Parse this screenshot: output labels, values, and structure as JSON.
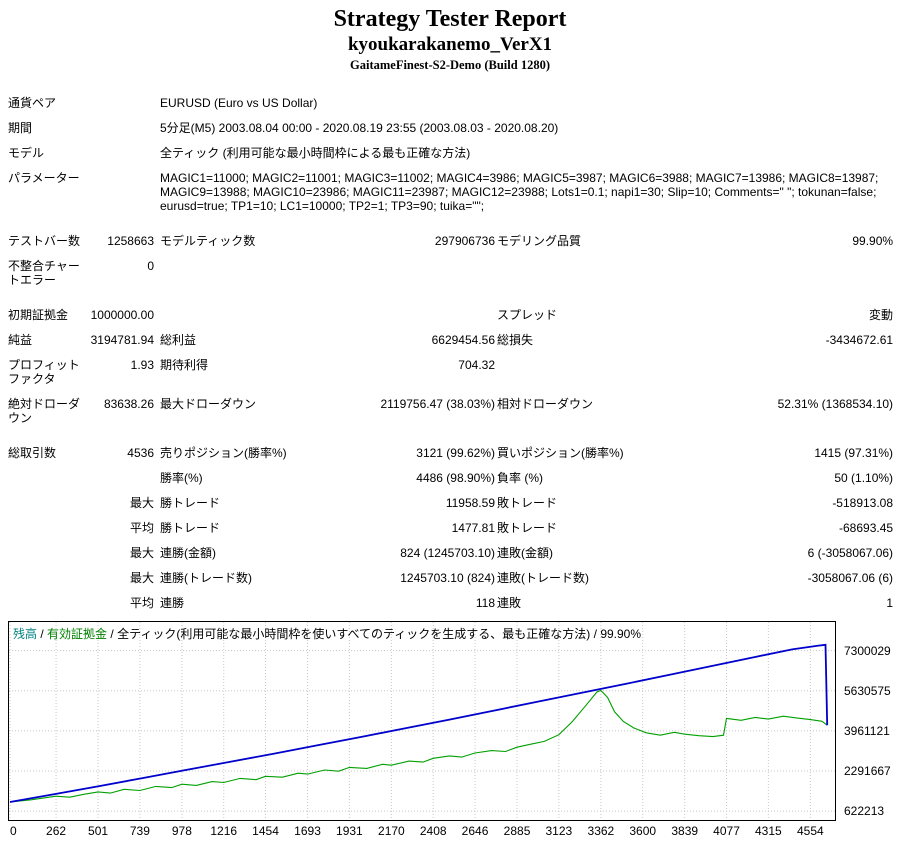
{
  "header": {
    "title": "Strategy Tester Report",
    "expert_name": "kyoukarakanemo_VerX1",
    "server": "GaitameFinest-S2-Demo (Build 1280)"
  },
  "table": {
    "rows": [
      {
        "cells": [
          {
            "t": "通貨ペア",
            "cls": "lbl"
          },
          {
            "t": "",
            "cls": "num"
          },
          {
            "t": "EURUSD (Euro vs US Dollar)",
            "cls": "txt",
            "span": 4
          }
        ]
      },
      {
        "cells": [
          {
            "t": "期間",
            "cls": "lbl"
          },
          {
            "t": "",
            "cls": "num"
          },
          {
            "t": "5分足(M5) 2003.08.04 00:00 - 2020.08.19 23:55 (2003.08.03 - 2020.08.20)",
            "cls": "txt",
            "span": 4
          }
        ]
      },
      {
        "cells": [
          {
            "t": "モデル",
            "cls": "lbl"
          },
          {
            "t": "",
            "cls": "num"
          },
          {
            "t": "全ティック (利用可能な最小時間枠による最も正確な方法)",
            "cls": "txt",
            "span": 4
          }
        ]
      },
      {
        "cells": [
          {
            "t": "パラメーター",
            "cls": "lbl"
          },
          {
            "t": "",
            "cls": "num"
          },
          {
            "t": "MAGIC1=11000; MAGIC2=11001; MAGIC3=11002; MAGIC4=3986; MAGIC5=3987; MAGIC6=3988; MAGIC7=13986; MAGIC8=13987; MAGIC9=13988; MAGIC10=23986; MAGIC11=23987; MAGIC12=23988; Lots1=0.1; napi1=30; Slip=10; Comments=\" \"; tokunan=false; eurusd=true; TP1=10; LC1=10000; TP2=1; TP3=90; tuika=\"\";",
            "cls": "txt",
            "span": 4
          }
        ]
      },
      {
        "spacer": true
      },
      {
        "cells": [
          {
            "t": "テストバー数",
            "cls": "lbl"
          },
          {
            "t": "1258663",
            "cls": "num"
          },
          {
            "t": "モデルティック数",
            "cls": "lbl3"
          },
          {
            "t": "297906736",
            "cls": "num"
          },
          {
            "t": "モデリング品質",
            "cls": "lbl5"
          },
          {
            "t": "99.90%",
            "cls": "num"
          }
        ]
      },
      {
        "cells": [
          {
            "t": "不整合チャートエラー",
            "cls": "lbl"
          },
          {
            "t": "0",
            "cls": "num"
          },
          {
            "t": "",
            "cls": "txt",
            "span": 4
          }
        ]
      },
      {
        "spacer": true
      },
      {
        "cells": [
          {
            "t": "初期証拠金",
            "cls": "lbl"
          },
          {
            "t": "1000000.00",
            "cls": "num"
          },
          {
            "t": "",
            "cls": "lbl3"
          },
          {
            "t": "",
            "cls": "num"
          },
          {
            "t": "スプレッド",
            "cls": "lbl5"
          },
          {
            "t": "変動",
            "cls": "num"
          }
        ]
      },
      {
        "cells": [
          {
            "t": "純益",
            "cls": "lbl"
          },
          {
            "t": "3194781.94",
            "cls": "num"
          },
          {
            "t": "総利益",
            "cls": "lbl3"
          },
          {
            "t": "6629454.56",
            "cls": "num"
          },
          {
            "t": "総損失",
            "cls": "lbl5"
          },
          {
            "t": "-3434672.61",
            "cls": "num"
          }
        ]
      },
      {
        "cells": [
          {
            "t": "プロフィットファクタ",
            "cls": "lbl"
          },
          {
            "t": "1.93",
            "cls": "num"
          },
          {
            "t": "期待利得",
            "cls": "lbl3"
          },
          {
            "t": "704.32",
            "cls": "num"
          },
          {
            "t": "",
            "cls": "lbl5"
          },
          {
            "t": "",
            "cls": "num"
          }
        ]
      },
      {
        "cells": [
          {
            "t": "絶対ドローダウン",
            "cls": "lbl"
          },
          {
            "t": "83638.26",
            "cls": "num"
          },
          {
            "t": "最大ドローダウン",
            "cls": "lbl3"
          },
          {
            "t": "2119756.47 (38.03%)",
            "cls": "num"
          },
          {
            "t": "相対ドローダウン",
            "cls": "lbl5"
          },
          {
            "t": "52.31% (1368534.10)",
            "cls": "num"
          }
        ]
      },
      {
        "spacer": true
      },
      {
        "cells": [
          {
            "t": "総取引数",
            "cls": "lbl"
          },
          {
            "t": "4536",
            "cls": "num"
          },
          {
            "t": "売りポジション(勝率%)",
            "cls": "lbl3"
          },
          {
            "t": "3121 (99.62%)",
            "cls": "num"
          },
          {
            "t": "買いポジション(勝率%)",
            "cls": "lbl5"
          },
          {
            "t": "1415 (97.31%)",
            "cls": "num"
          }
        ]
      },
      {
        "cells": [
          {
            "t": "",
            "cls": "lbl"
          },
          {
            "t": "",
            "cls": "num"
          },
          {
            "t": "勝率(%)",
            "cls": "lbl3"
          },
          {
            "t": "4486 (98.90%)",
            "cls": "num"
          },
          {
            "t": "負率 (%)",
            "cls": "lbl5"
          },
          {
            "t": "50 (1.10%)",
            "cls": "num"
          }
        ]
      },
      {
        "cells": [
          {
            "t": "",
            "cls": "lbl"
          },
          {
            "t": "最大",
            "cls": "num"
          },
          {
            "t": "勝トレード",
            "cls": "lbl3"
          },
          {
            "t": "11958.59",
            "cls": "num"
          },
          {
            "t": "敗トレード",
            "cls": "lbl5"
          },
          {
            "t": "-518913.08",
            "cls": "num"
          }
        ]
      },
      {
        "cells": [
          {
            "t": "",
            "cls": "lbl"
          },
          {
            "t": "平均",
            "cls": "num"
          },
          {
            "t": "勝トレード",
            "cls": "lbl3"
          },
          {
            "t": "1477.81",
            "cls": "num"
          },
          {
            "t": "敗トレード",
            "cls": "lbl5"
          },
          {
            "t": "-68693.45",
            "cls": "num"
          }
        ]
      },
      {
        "cells": [
          {
            "t": "",
            "cls": "lbl"
          },
          {
            "t": "最大",
            "cls": "num"
          },
          {
            "t": "連勝(金額)",
            "cls": "lbl3"
          },
          {
            "t": "824 (1245703.10)",
            "cls": "num"
          },
          {
            "t": "連敗(金額)",
            "cls": "lbl5"
          },
          {
            "t": "6 (-3058067.06)",
            "cls": "num"
          }
        ]
      },
      {
        "cells": [
          {
            "t": "",
            "cls": "lbl"
          },
          {
            "t": "最大",
            "cls": "num"
          },
          {
            "t": "連勝(トレード数)",
            "cls": "lbl3"
          },
          {
            "t": "1245703.10 (824)",
            "cls": "num"
          },
          {
            "t": "連敗(トレード数)",
            "cls": "lbl5"
          },
          {
            "t": "-3058067.06 (6)",
            "cls": "num"
          }
        ]
      },
      {
        "cells": [
          {
            "t": "",
            "cls": "lbl"
          },
          {
            "t": "平均",
            "cls": "num"
          },
          {
            "t": "連勝",
            "cls": "lbl3"
          },
          {
            "t": "118",
            "cls": "num"
          },
          {
            "t": "連敗",
            "cls": "lbl5"
          },
          {
            "t": "1",
            "cls": "num"
          }
        ]
      }
    ]
  },
  "chart": {
    "legend": {
      "balance_label": "残高",
      "equity_label": "有効証拠金",
      "separator": " / ",
      "description": "全ティック(利用可能な最小時間枠を使いすべてのティックを生成する、最も正確な方法)",
      "quality": "99.90%",
      "balance_color": "#008080",
      "equity_color": "#008000"
    }
  },
  "chart_data": {
    "type": "line",
    "grid": true,
    "legend_position": "top-left-inside",
    "x_ticks": [
      0,
      262,
      501,
      739,
      978,
      1216,
      1454,
      1693,
      1931,
      2170,
      2408,
      2646,
      2885,
      3123,
      3362,
      3600,
      3839,
      4077,
      4315,
      4554
    ],
    "x_max": 4660,
    "y_ticks": [
      622213,
      2291667,
      3961121,
      5630575,
      7300029
    ],
    "y_min": 251000,
    "y_max": 8490000,
    "series": [
      {
        "key": "equity-line",
        "name": "有効証拠金",
        "color": "#00a000",
        "width": 1.1,
        "points": [
          [
            0,
            1000000
          ],
          [
            120,
            1090000
          ],
          [
            262,
            1240000
          ],
          [
            340,
            1200000
          ],
          [
            420,
            1320000
          ],
          [
            501,
            1420000
          ],
          [
            570,
            1370000
          ],
          [
            650,
            1530000
          ],
          [
            739,
            1480000
          ],
          [
            830,
            1650000
          ],
          [
            920,
            1600000
          ],
          [
            978,
            1740000
          ],
          [
            1060,
            1690000
          ],
          [
            1150,
            1850000
          ],
          [
            1216,
            1810000
          ],
          [
            1310,
            1980000
          ],
          [
            1400,
            1930000
          ],
          [
            1454,
            2070000
          ],
          [
            1550,
            2030000
          ],
          [
            1640,
            2200000
          ],
          [
            1693,
            2160000
          ],
          [
            1790,
            2330000
          ],
          [
            1870,
            2280000
          ],
          [
            1931,
            2440000
          ],
          [
            2030,
            2400000
          ],
          [
            2120,
            2570000
          ],
          [
            2170,
            2530000
          ],
          [
            2270,
            2700000
          ],
          [
            2350,
            2660000
          ],
          [
            2408,
            2820000
          ],
          [
            2500,
            2920000
          ],
          [
            2570,
            2870000
          ],
          [
            2646,
            3040000
          ],
          [
            2740,
            3140000
          ],
          [
            2820,
            3100000
          ],
          [
            2885,
            3280000
          ],
          [
            2960,
            3400000
          ],
          [
            3040,
            3520000
          ],
          [
            3123,
            3800000
          ],
          [
            3200,
            4350000
          ],
          [
            3280,
            5050000
          ],
          [
            3340,
            5580000
          ],
          [
            3362,
            5640000
          ],
          [
            3400,
            5350000
          ],
          [
            3440,
            4750000
          ],
          [
            3490,
            4350000
          ],
          [
            3550,
            4080000
          ],
          [
            3620,
            3880000
          ],
          [
            3700,
            3780000
          ],
          [
            3780,
            3900000
          ],
          [
            3839,
            3820000
          ],
          [
            3920,
            3760000
          ],
          [
            4000,
            3720000
          ],
          [
            4060,
            3780000
          ],
          [
            4077,
            4480000
          ],
          [
            4160,
            4400000
          ],
          [
            4240,
            4520000
          ],
          [
            4315,
            4450000
          ],
          [
            4400,
            4570000
          ],
          [
            4480,
            4490000
          ],
          [
            4554,
            4430000
          ],
          [
            4620,
            4360000
          ],
          [
            4650,
            4194782
          ]
        ]
      },
      {
        "key": "balance-line",
        "name": "残高",
        "color": "#0000cc",
        "width": 1.8,
        "points": [
          [
            0,
            1000000
          ],
          [
            250,
            1320000
          ],
          [
            500,
            1650000
          ],
          [
            750,
            1990000
          ],
          [
            1000,
            2330000
          ],
          [
            1250,
            2670000
          ],
          [
            1500,
            3010000
          ],
          [
            1750,
            3360000
          ],
          [
            2000,
            3710000
          ],
          [
            2250,
            4070000
          ],
          [
            2500,
            4430000
          ],
          [
            2750,
            4800000
          ],
          [
            3000,
            5170000
          ],
          [
            3250,
            5540000
          ],
          [
            3500,
            5910000
          ],
          [
            3750,
            6290000
          ],
          [
            4000,
            6670000
          ],
          [
            4250,
            7050000
          ],
          [
            4450,
            7350000
          ],
          [
            4600,
            7510000
          ],
          [
            4640,
            7540000
          ],
          [
            4650,
            4194782
          ]
        ]
      }
    ]
  }
}
